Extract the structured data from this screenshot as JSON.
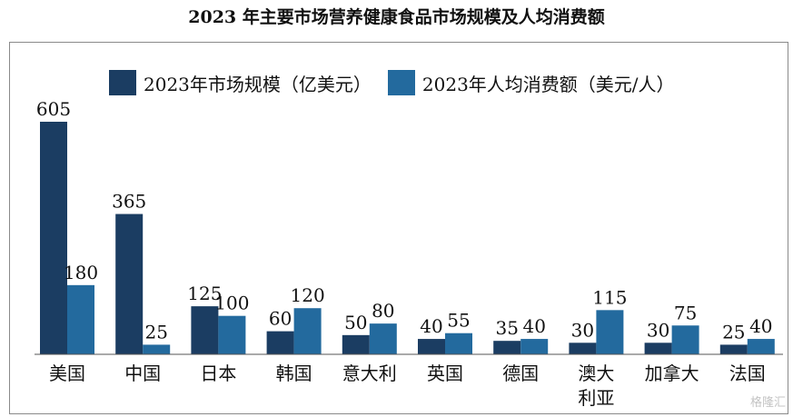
{
  "title": "2023 年主要市场营养健康食品市场规模及人均消费额",
  "watermark": "格隆汇",
  "chart_data": {
    "type": "bar",
    "categories": [
      "美国",
      "中国",
      "日本",
      "韩国",
      "意大利",
      "英国",
      "德国",
      "澳大利亚",
      "加拿大",
      "法国"
    ],
    "category_lines": [
      [
        "美国"
      ],
      [
        "中国"
      ],
      [
        "日本"
      ],
      [
        "韩国"
      ],
      [
        "意大利"
      ],
      [
        "英国"
      ],
      [
        "德国"
      ],
      [
        "澳大",
        "利亚"
      ],
      [
        "加拿大"
      ],
      [
        "法国"
      ]
    ],
    "series": [
      {
        "name": "2023年市场规模（亿美元）",
        "values": [
          605,
          365,
          125,
          60,
          50,
          40,
          35,
          30,
          30,
          25
        ],
        "color": "#1b3d62"
      },
      {
        "name": "2023年人均消费额（美元/人）",
        "values": [
          180,
          25,
          100,
          120,
          80,
          55,
          40,
          115,
          75,
          40
        ],
        "color": "#236a9e"
      }
    ],
    "ylim": [
      0,
      650
    ],
    "grid": false,
    "legend_position": "top"
  }
}
